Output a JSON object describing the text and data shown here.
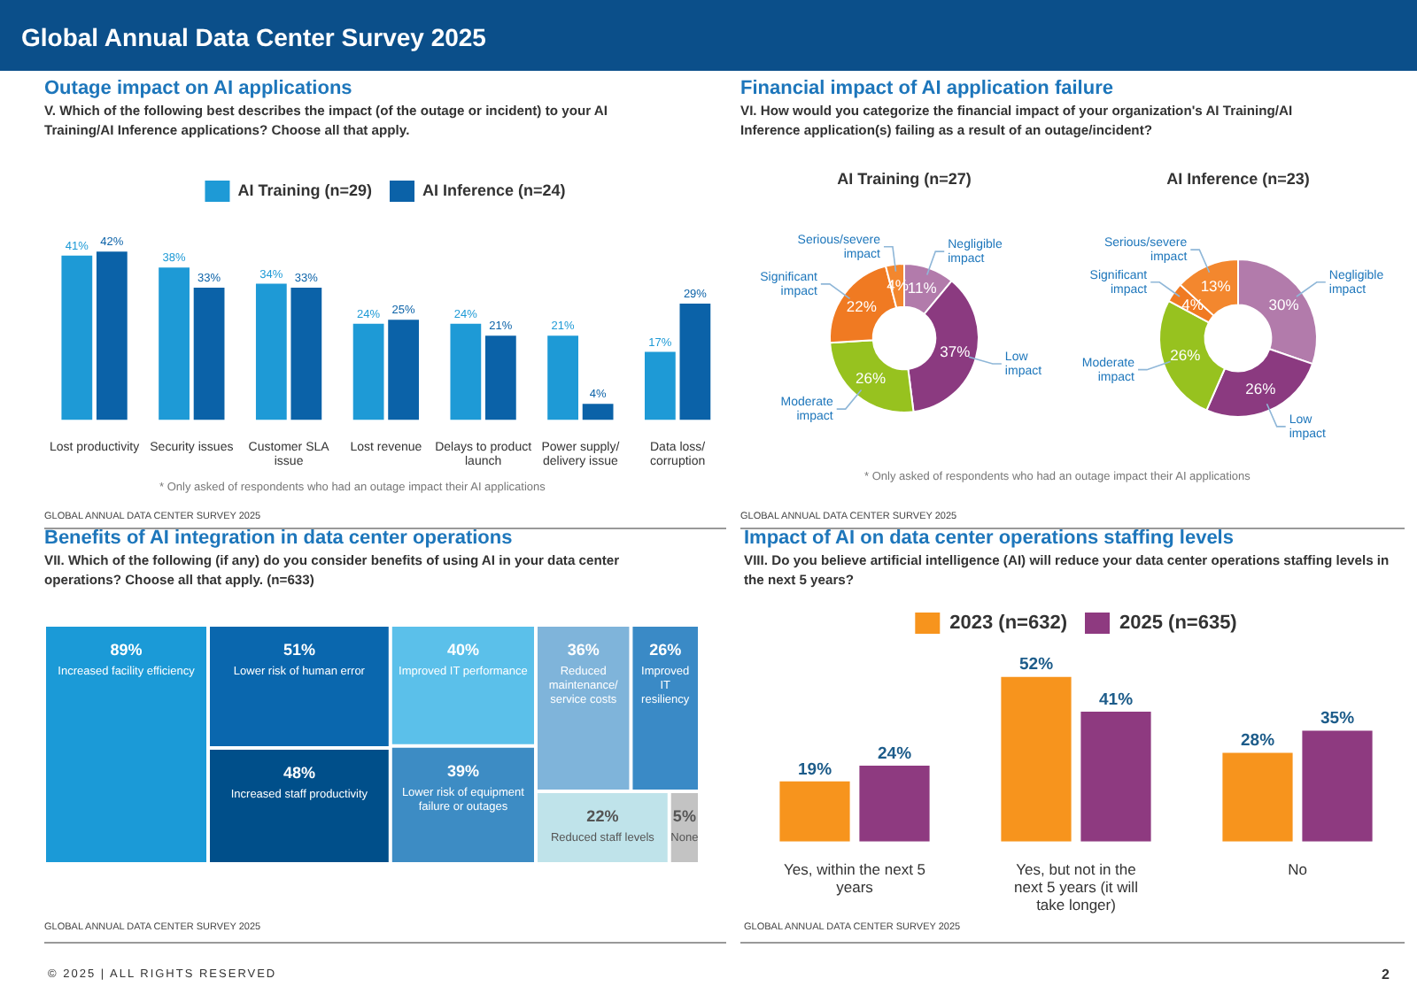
{
  "chart_data": [
    {
      "type": "bar",
      "title": "Outage impact on AI applications",
      "subtitle": "V. Which of the following best describes the impact (of the outage or incident) to your AI Training/AI Inference applications? Choose all that apply.",
      "categories": [
        "Lost productivity",
        "Security issues",
        "Customer SLA issue",
        "Lost revenue",
        "Delays to product launch",
        "Power supply/ delivery issue",
        "Data loss/ corruption"
      ],
      "series": [
        {
          "name": "AI Training (n=29)",
          "color": "#1e9ad6",
          "values": [
            41,
            38,
            34,
            24,
            24,
            21,
            17
          ],
          "value_labels": [
            "41%",
            "38%",
            "34%",
            "24%",
            "24%",
            "21%",
            "17%"
          ]
        },
        {
          "name": "AI Inference (n=24)",
          "color": "#0b62a8",
          "values": [
            42,
            33,
            33,
            25,
            21,
            4,
            29
          ],
          "value_labels": [
            "42%",
            "33%",
            "33%",
            "25%",
            "21%",
            "4%",
            "29%"
          ]
        }
      ],
      "legend": "top",
      "grid": false,
      "annotations": [
        "Global Annual Data Center Survey 2025",
        "* Only asked of respondents who had an outage impact their AI applications",
        "GLOBAL ANNUAL DATA CENTER SURVEY 2025",
        "© 2025 | ALL RIGHTS RESERVED",
        "2"
      ]
    },
    {
      "type": "donut",
      "title": "Financial impact of AI application failure",
      "subtitle": "VI. How would you categorize the financial impact of your organization's AI Training/AI Inference application(s) failing as a result of an outage/incident?",
      "categories": [
        "Negligible impact",
        "Low impact",
        "Moderate impact",
        "Significant impact",
        "Serious/severe impact"
      ],
      "series": [
        {
          "name": "AI Training (n=27)",
          "values": [
            11,
            37,
            26,
            22,
            4
          ],
          "value_labels": [
            "11%",
            "37%",
            "26%",
            "22%",
            "4%"
          ]
        }
      ],
      "colors": [
        "#b27bab",
        "#8b3a80",
        "#97c21f",
        "#f07a22",
        "#f3872e"
      ],
      "annotations": [
        "* Only asked of respondents who had an outage impact their AI applications",
        "GLOBAL ANNUAL DATA CENTER SURVEY 2025"
      ]
    },
    {
      "type": "donut",
      "categories": [
        "Negligible impact",
        "Low impact",
        "Moderate impact",
        "Significant impact",
        "Serious/severe impact"
      ],
      "series": [
        {
          "name": "AI Inference (n=23)",
          "values": [
            30,
            26,
            26,
            4,
            13
          ],
          "value_labels": [
            "30%",
            "26%",
            "26%",
            "4%",
            "13%"
          ]
        }
      ],
      "colors": [
        "#b27bab",
        "#8b3a80",
        "#97c21f",
        "#f07a22",
        "#f3872e"
      ]
    },
    {
      "type": "other",
      "title": "Benefits of AI integration in data center operations",
      "subtitle": "VII. Which of the following (if any) do you consider benefits of using AI in your data center operations? Choose all that apply. (n=633)",
      "categories": [
        "Increased facility efficiency",
        "Lower risk of human error",
        "Increased staff productivity",
        "Improved IT performance",
        "Lower risk of equipment failure or outages",
        "Reduced maintenance/ service costs",
        "Improved IT resiliency",
        "Reduced staff levels",
        "None"
      ],
      "values": [
        89,
        51,
        48,
        40,
        39,
        36,
        26,
        22,
        5
      ],
      "value_labels": [
        "89%",
        "51%",
        "48%",
        "40%",
        "39%",
        "36%",
        "26%",
        "22%",
        "5%"
      ],
      "colors": [
        "#1b9ad7",
        "#0a67ae",
        "#004f8a",
        "#5bc0ea",
        "#3d8cc4",
        "#7fb4da",
        "#3a8ac6",
        "#bfe3ea",
        "#c3c3c3"
      ],
      "annotations": [
        "GLOBAL ANNUAL DATA CENTER SURVEY 2025"
      ]
    },
    {
      "type": "bar",
      "title": "Impact of AI on data center operations staffing levels",
      "subtitle": "VIII. Do you believe artificial intelligence (AI) will reduce your data center operations staffing levels in the next 5 years?",
      "categories": [
        "Yes, within the next 5 years",
        "Yes, but not in the next 5 years (it will take longer)",
        "No"
      ],
      "series": [
        {
          "name": "2023 (n=632)",
          "color": "#f7941d",
          "values": [
            19,
            52,
            28
          ],
          "value_labels": [
            "19%",
            "52%",
            "28%"
          ]
        },
        {
          "name": "2025 (n=635)",
          "color": "#8e3a80",
          "values": [
            24,
            41,
            35
          ],
          "value_labels": [
            "24%",
            "41%",
            "35%"
          ]
        }
      ],
      "legend": "top",
      "grid": false,
      "annotations": [
        "GLOBAL ANNUAL DATA CENTER SURVEY 2025"
      ]
    }
  ]
}
